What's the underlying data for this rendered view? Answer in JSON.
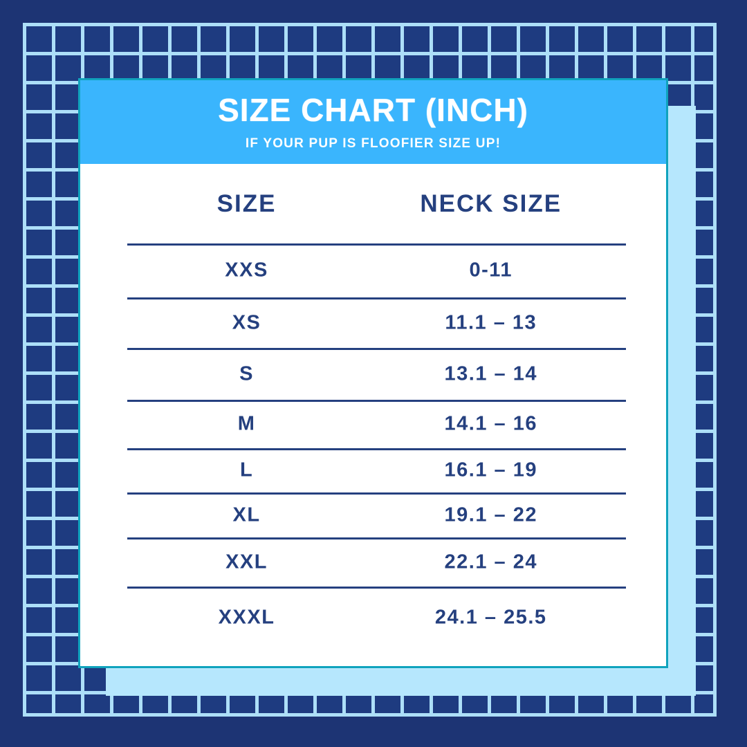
{
  "card": {
    "header": {
      "title": "SIZE CHART (INCH)",
      "subtitle": "IF YOUR PUP IS FLOOFIER SIZE UP!"
    },
    "table": {
      "columns": [
        {
          "label": "SIZE"
        },
        {
          "label": "NECK SIZE"
        }
      ],
      "rows": [
        {
          "size": "XXS",
          "neck": "0-11"
        },
        {
          "size": "XS",
          "neck": "11.1 – 13"
        },
        {
          "size": "S",
          "neck": "13.1 – 14"
        },
        {
          "size": "M",
          "neck": "14.1 – 16"
        },
        {
          "size": "L",
          "neck": "16.1 – 19"
        },
        {
          "size": "XL",
          "neck": "19.1 – 22"
        },
        {
          "size": "XXL",
          "neck": "22.1 – 24"
        },
        {
          "size": "XXXL",
          "neck": "24.1 – 25.5"
        }
      ]
    }
  },
  "colors": {
    "background_navy": "#1d3474",
    "grid_cell_navy": "#1e3b80",
    "grid_line_blue": "#addff8",
    "shadow_blue": "#b6e7fd",
    "header_blue": "#3ab5fd",
    "card_border_teal": "#10a3bd",
    "text_navy": "#25407f",
    "title_white": "#ffffff"
  }
}
